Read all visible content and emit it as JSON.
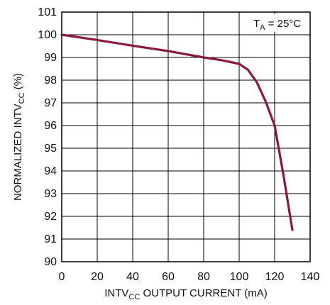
{
  "chart_data": {
    "type": "line",
    "title": "",
    "xlabel": {
      "pre": "INTV",
      "sub": "CC",
      "post": " OUTPUT CURRENT (mA)"
    },
    "ylabel": {
      "pre": "NORMALIZED INTV",
      "sub": "CC",
      "post": " (%)"
    },
    "xlim": [
      0,
      140
    ],
    "ylim": [
      90,
      101
    ],
    "xticks": [
      "0",
      "20",
      "40",
      "60",
      "80",
      "100",
      "120",
      "140"
    ],
    "yticks": [
      "90",
      "91",
      "92",
      "93",
      "94",
      "95",
      "96",
      "97",
      "98",
      "99",
      "100",
      "101"
    ],
    "grid": true,
    "annotation": {
      "pre": "T",
      "sub": "A",
      "post": " = 25°C"
    },
    "series": [
      {
        "name": "",
        "color": "#8b1a3a",
        "x": [
          0,
          20,
          40,
          60,
          80,
          90,
          100,
          105,
          110,
          115,
          120,
          125,
          130
        ],
        "y": [
          100,
          99.77,
          99.52,
          99.28,
          99.0,
          98.88,
          98.72,
          98.45,
          97.9,
          97.05,
          96.0,
          93.8,
          91.4
        ]
      }
    ]
  }
}
